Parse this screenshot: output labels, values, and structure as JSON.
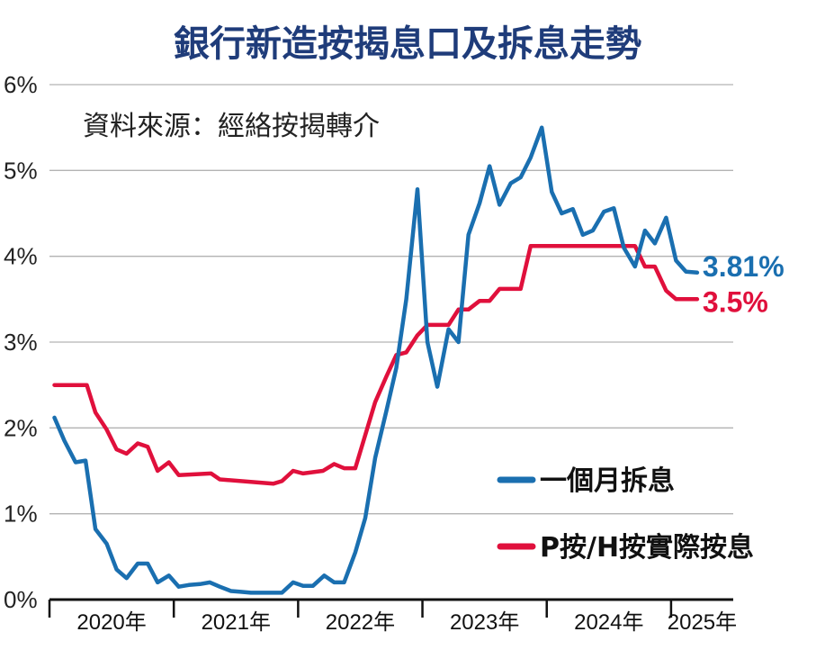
{
  "chart_data": {
    "type": "line",
    "title": "銀行新造按揭息口及拆息走勢",
    "source": "資料來源：經絡按揭轉介",
    "yaxis": {
      "min": 0,
      "max": 6,
      "ticks": [
        "0%",
        "1%",
        "2%",
        "3%",
        "4%",
        "5%",
        "6%"
      ]
    },
    "xaxis": {
      "min": 2020.0,
      "max": 2025.5,
      "labels": [
        "2020年",
        "2021年",
        "2022年",
        "2023年",
        "2024年",
        "2025年"
      ],
      "label_x": [
        2020.5,
        2021.5,
        2022.5,
        2023.5,
        2024.5,
        2025.25
      ]
    },
    "grid": true,
    "legend_position": "bottom-right",
    "colors": {
      "hibor": "#1a6fb0",
      "prime": "#e0103c"
    },
    "series": [
      {
        "name": "一個月拆息",
        "end_label": "3.81%",
        "x": [
          2020.04,
          2020.12,
          2020.21,
          2020.29,
          2020.37,
          2020.46,
          2020.54,
          2020.62,
          2020.71,
          2020.79,
          2020.87,
          2020.96,
          2021.04,
          2021.12,
          2021.21,
          2021.29,
          2021.37,
          2021.46,
          2021.54,
          2021.62,
          2021.71,
          2021.79,
          2021.87,
          2021.96,
          2022.04,
          2022.12,
          2022.21,
          2022.29,
          2022.37,
          2022.46,
          2022.54,
          2022.62,
          2022.71,
          2022.79,
          2022.87,
          2022.96,
          2023.04,
          2023.12,
          2023.21,
          2023.29,
          2023.37,
          2023.46,
          2023.54,
          2023.62,
          2023.71,
          2023.79,
          2023.87,
          2023.96,
          2024.04,
          2024.12,
          2024.21,
          2024.29,
          2024.37,
          2024.46,
          2024.54,
          2024.62,
          2024.71,
          2024.79,
          2024.87,
          2024.96,
          2025.04,
          2025.12,
          2025.21
        ],
        "values": [
          2.12,
          1.85,
          1.6,
          1.62,
          0.82,
          0.65,
          0.35,
          0.25,
          0.42,
          0.42,
          0.2,
          0.28,
          0.15,
          0.17,
          0.18,
          0.2,
          0.15,
          0.1,
          0.09,
          0.08,
          0.08,
          0.08,
          0.08,
          0.2,
          0.16,
          0.16,
          0.28,
          0.2,
          0.2,
          0.55,
          0.95,
          1.65,
          2.2,
          2.7,
          3.5,
          4.78,
          3.0,
          2.48,
          3.15,
          3.0,
          4.25,
          4.62,
          5.05,
          4.6,
          4.85,
          4.92,
          5.15,
          5.5,
          4.75,
          4.5,
          4.55,
          4.25,
          4.3,
          4.52,
          4.56,
          4.1,
          3.88,
          4.3,
          4.15,
          4.45,
          3.95,
          3.82,
          3.81
        ]
      },
      {
        "name": "P按/H按實際按息",
        "end_label": "3.5%",
        "x": [
          2020.04,
          2020.3,
          2020.37,
          2020.46,
          2020.54,
          2020.62,
          2020.71,
          2020.79,
          2020.87,
          2020.96,
          2021.04,
          2021.3,
          2021.37,
          2021.8,
          2021.87,
          2021.96,
          2022.04,
          2022.2,
          2022.29,
          2022.37,
          2022.46,
          2022.62,
          2022.71,
          2022.79,
          2022.87,
          2022.96,
          2023.04,
          2023.12,
          2023.21,
          2023.29,
          2023.37,
          2023.46,
          2023.54,
          2023.62,
          2023.71,
          2023.79,
          2023.87,
          2024.4,
          2024.71,
          2024.79,
          2024.87,
          2024.96,
          2025.04,
          2025.21
        ],
        "values": [
          2.5,
          2.5,
          2.18,
          1.98,
          1.75,
          1.7,
          1.82,
          1.78,
          1.5,
          1.6,
          1.45,
          1.47,
          1.4,
          1.35,
          1.38,
          1.5,
          1.47,
          1.5,
          1.58,
          1.53,
          1.53,
          2.3,
          2.6,
          2.85,
          2.88,
          3.08,
          3.2,
          3.2,
          3.2,
          3.38,
          3.38,
          3.48,
          3.48,
          3.62,
          3.62,
          3.62,
          4.12,
          4.12,
          4.12,
          3.88,
          3.88,
          3.6,
          3.5,
          3.5
        ]
      }
    ]
  }
}
